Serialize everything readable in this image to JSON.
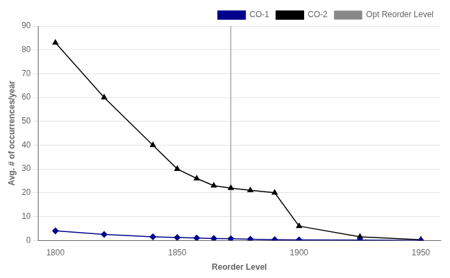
{
  "chart_data": {
    "type": "line",
    "x_label": "Reorder Level",
    "y_label": "Avg. # of occurrences/year",
    "series": [
      {
        "name": "CO-1",
        "color": "#00008B",
        "marker": "diamond",
        "x": [
          1800,
          1820,
          1840,
          1850,
          1858,
          1865,
          1872,
          1880,
          1890,
          1900,
          1925,
          1950
        ],
        "values": [
          4.0,
          2.5,
          1.5,
          1.2,
          1.0,
          0.8,
          0.7,
          0.5,
          0.3,
          0.2,
          0.1,
          0.0
        ]
      },
      {
        "name": "CO-2",
        "color": "#000000",
        "marker": "triangle",
        "x": [
          1800,
          1820,
          1840,
          1850,
          1858,
          1865,
          1872,
          1880,
          1890,
          1900,
          1925,
          1950
        ],
        "values": [
          83,
          60,
          40,
          30,
          26,
          23,
          22,
          21,
          20,
          6,
          1.5,
          0.3
        ]
      },
      {
        "name": "Opt Reorder Level",
        "color": "#888888",
        "type": "vline",
        "x": [
          1872
        ]
      }
    ],
    "xlim": [
      1793,
      1958
    ],
    "xticks": [
      1800,
      1850,
      1900,
      1950
    ],
    "ylim": [
      0,
      90
    ],
    "yticks": [
      0,
      10,
      20,
      30,
      40,
      50,
      60,
      70,
      80,
      90
    ],
    "grid": "y",
    "legend": "upper right"
  }
}
